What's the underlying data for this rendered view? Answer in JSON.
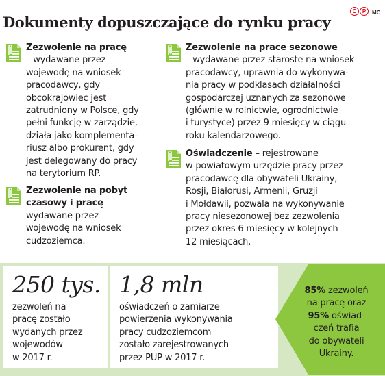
{
  "header": {
    "title": "Dokumenty dopuszczające do rynku pracy",
    "logo_letters": [
      "C",
      "P"
    ],
    "author": "MC"
  },
  "colors": {
    "accent_green": "#8dc63f",
    "light_green": "#d6e7c4",
    "logo_red": "#e30613"
  },
  "icon": "document-clip-icon",
  "entries": [
    {
      "heading": "Zezwolenie na pracę",
      "lines": [
        "– wydawane przez",
        "wojewodę na wniosek",
        "pracodawcy, gdy",
        "obcokrajowiec jest",
        "zatrudniony w Polsce, gdy",
        "pełni funkcję w zarządzie,",
        "działa jako komplementa-",
        "riusz albo prokurent, gdy",
        "jest delegowany do pracy",
        "na terytorium RP."
      ]
    },
    {
      "heading_lines": [
        "Zezwolenie na pobyt",
        "czasowy i pracę"
      ],
      "heading_tail": " –",
      "lines": [
        "wydawane przez",
        "wojewodę na wniosek",
        "cudzoziemca."
      ]
    },
    {
      "heading": "Zezwolenie na prace sezonowe",
      "lines": [
        "– wydawane przez starostę na wniosek",
        "pracodawcy, uprawnia do wykonywa-",
        "nia pracy w podklasach działalności",
        "gospodarczej uznanych za sezonowe",
        "(głównie w rolnictwie, ogrodnictwie",
        "i turystyce) przez 9 miesięcy w ciągu",
        "roku kalendarzowego."
      ]
    },
    {
      "heading": "Oświadczenie",
      "heading_tail": " – rejestrowane",
      "lines": [
        "w powiatowym urzędzie pracy przez",
        "pracodawcę dla obywateli Ukrainy,",
        "Rosji, Białorusi, Armenii, Gruzji",
        "i Mołdawii, pozwala na wykonywanie",
        "pracy niesezonowej bez zezwolenia",
        "przez okres 6 miesięcy w kolejnych",
        "12 miesiącach."
      ]
    }
  ],
  "stats": [
    {
      "value": "250 tys.",
      "lines": [
        "zezwoleń na",
        "pracę zostało",
        "wydanych przez",
        "wojewodów",
        "w 2017 r."
      ]
    },
    {
      "value": "1,8 mln",
      "lines": [
        "oświadczeń o zamiarze",
        "powierzenia wykonywania",
        "pracy cudzoziemcom",
        "zostało zarejestrowanych",
        "przez PUP w 2017 r."
      ]
    }
  ],
  "highlight": {
    "pct1": "85%",
    "line1_tail": " zezwoleń",
    "line2": "na pracę oraz",
    "pct2": "95%",
    "line3_tail": " oświad-",
    "line4": "czeń trafia",
    "line5": "do obywateli",
    "line6": "Ukrainy."
  }
}
